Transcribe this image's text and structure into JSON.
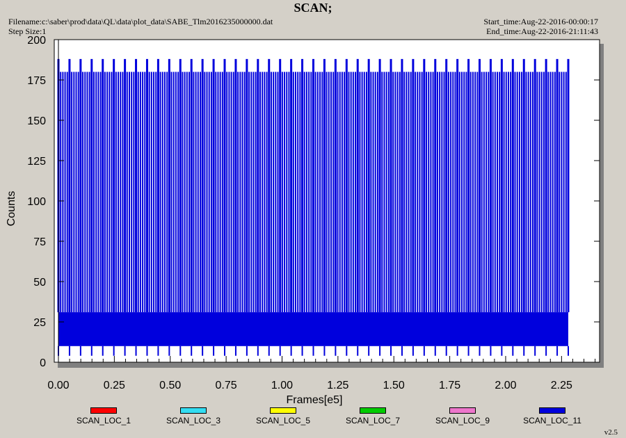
{
  "header": {
    "title": "SCAN;",
    "filename": "Filename:c:\\saber\\prod\\data\\QL\\data\\plot_data\\SABE_Tlm2016235000000.dat",
    "step_size": "Step Size:1",
    "start_time": "Start_time:Aug-22-2016-00:00:17",
    "end_time": "End_time:Aug-22-2016-21:11:43"
  },
  "version": "v2.5",
  "chart_data": {
    "type": "line",
    "title": "SCAN;",
    "xlabel": "Frames[e5]",
    "ylabel": "Counts",
    "xlim": [
      0,
      2.42
    ],
    "ylim": [
      0,
      200
    ],
    "x_ticks": [
      "0.00",
      "0.25",
      "0.50",
      "0.75",
      "1.00",
      "1.25",
      "1.50",
      "1.75",
      "2.00",
      "2.25"
    ],
    "y_ticks": [
      "0",
      "25",
      "50",
      "75",
      "100",
      "125",
      "150",
      "175",
      "200"
    ],
    "grid": false,
    "legend_placement": "bottom",
    "legend": [
      {
        "name": "SCAN_LOC_1",
        "color": "#ff0000"
      },
      {
        "name": "SCAN_LOC_3",
        "color": "#33ddf2"
      },
      {
        "name": "SCAN_LOC_5",
        "color": "#ffff00"
      },
      {
        "name": "SCAN_LOC_7",
        "color": "#00cc00"
      },
      {
        "name": "SCAN_LOC_9",
        "color": "#ee77cc"
      },
      {
        "name": "SCAN_LOC_11",
        "color": "#0000dd"
      }
    ],
    "series": [
      {
        "name": "SCAN_LOC_11",
        "color": "#0000dd",
        "x_range": [
          0,
          2.28
        ],
        "baseline_band": [
          10,
          31
        ],
        "peak_high": 188,
        "peak_low": 180,
        "dip_min": 4,
        "tall_spike_count": 46
      }
    ]
  }
}
